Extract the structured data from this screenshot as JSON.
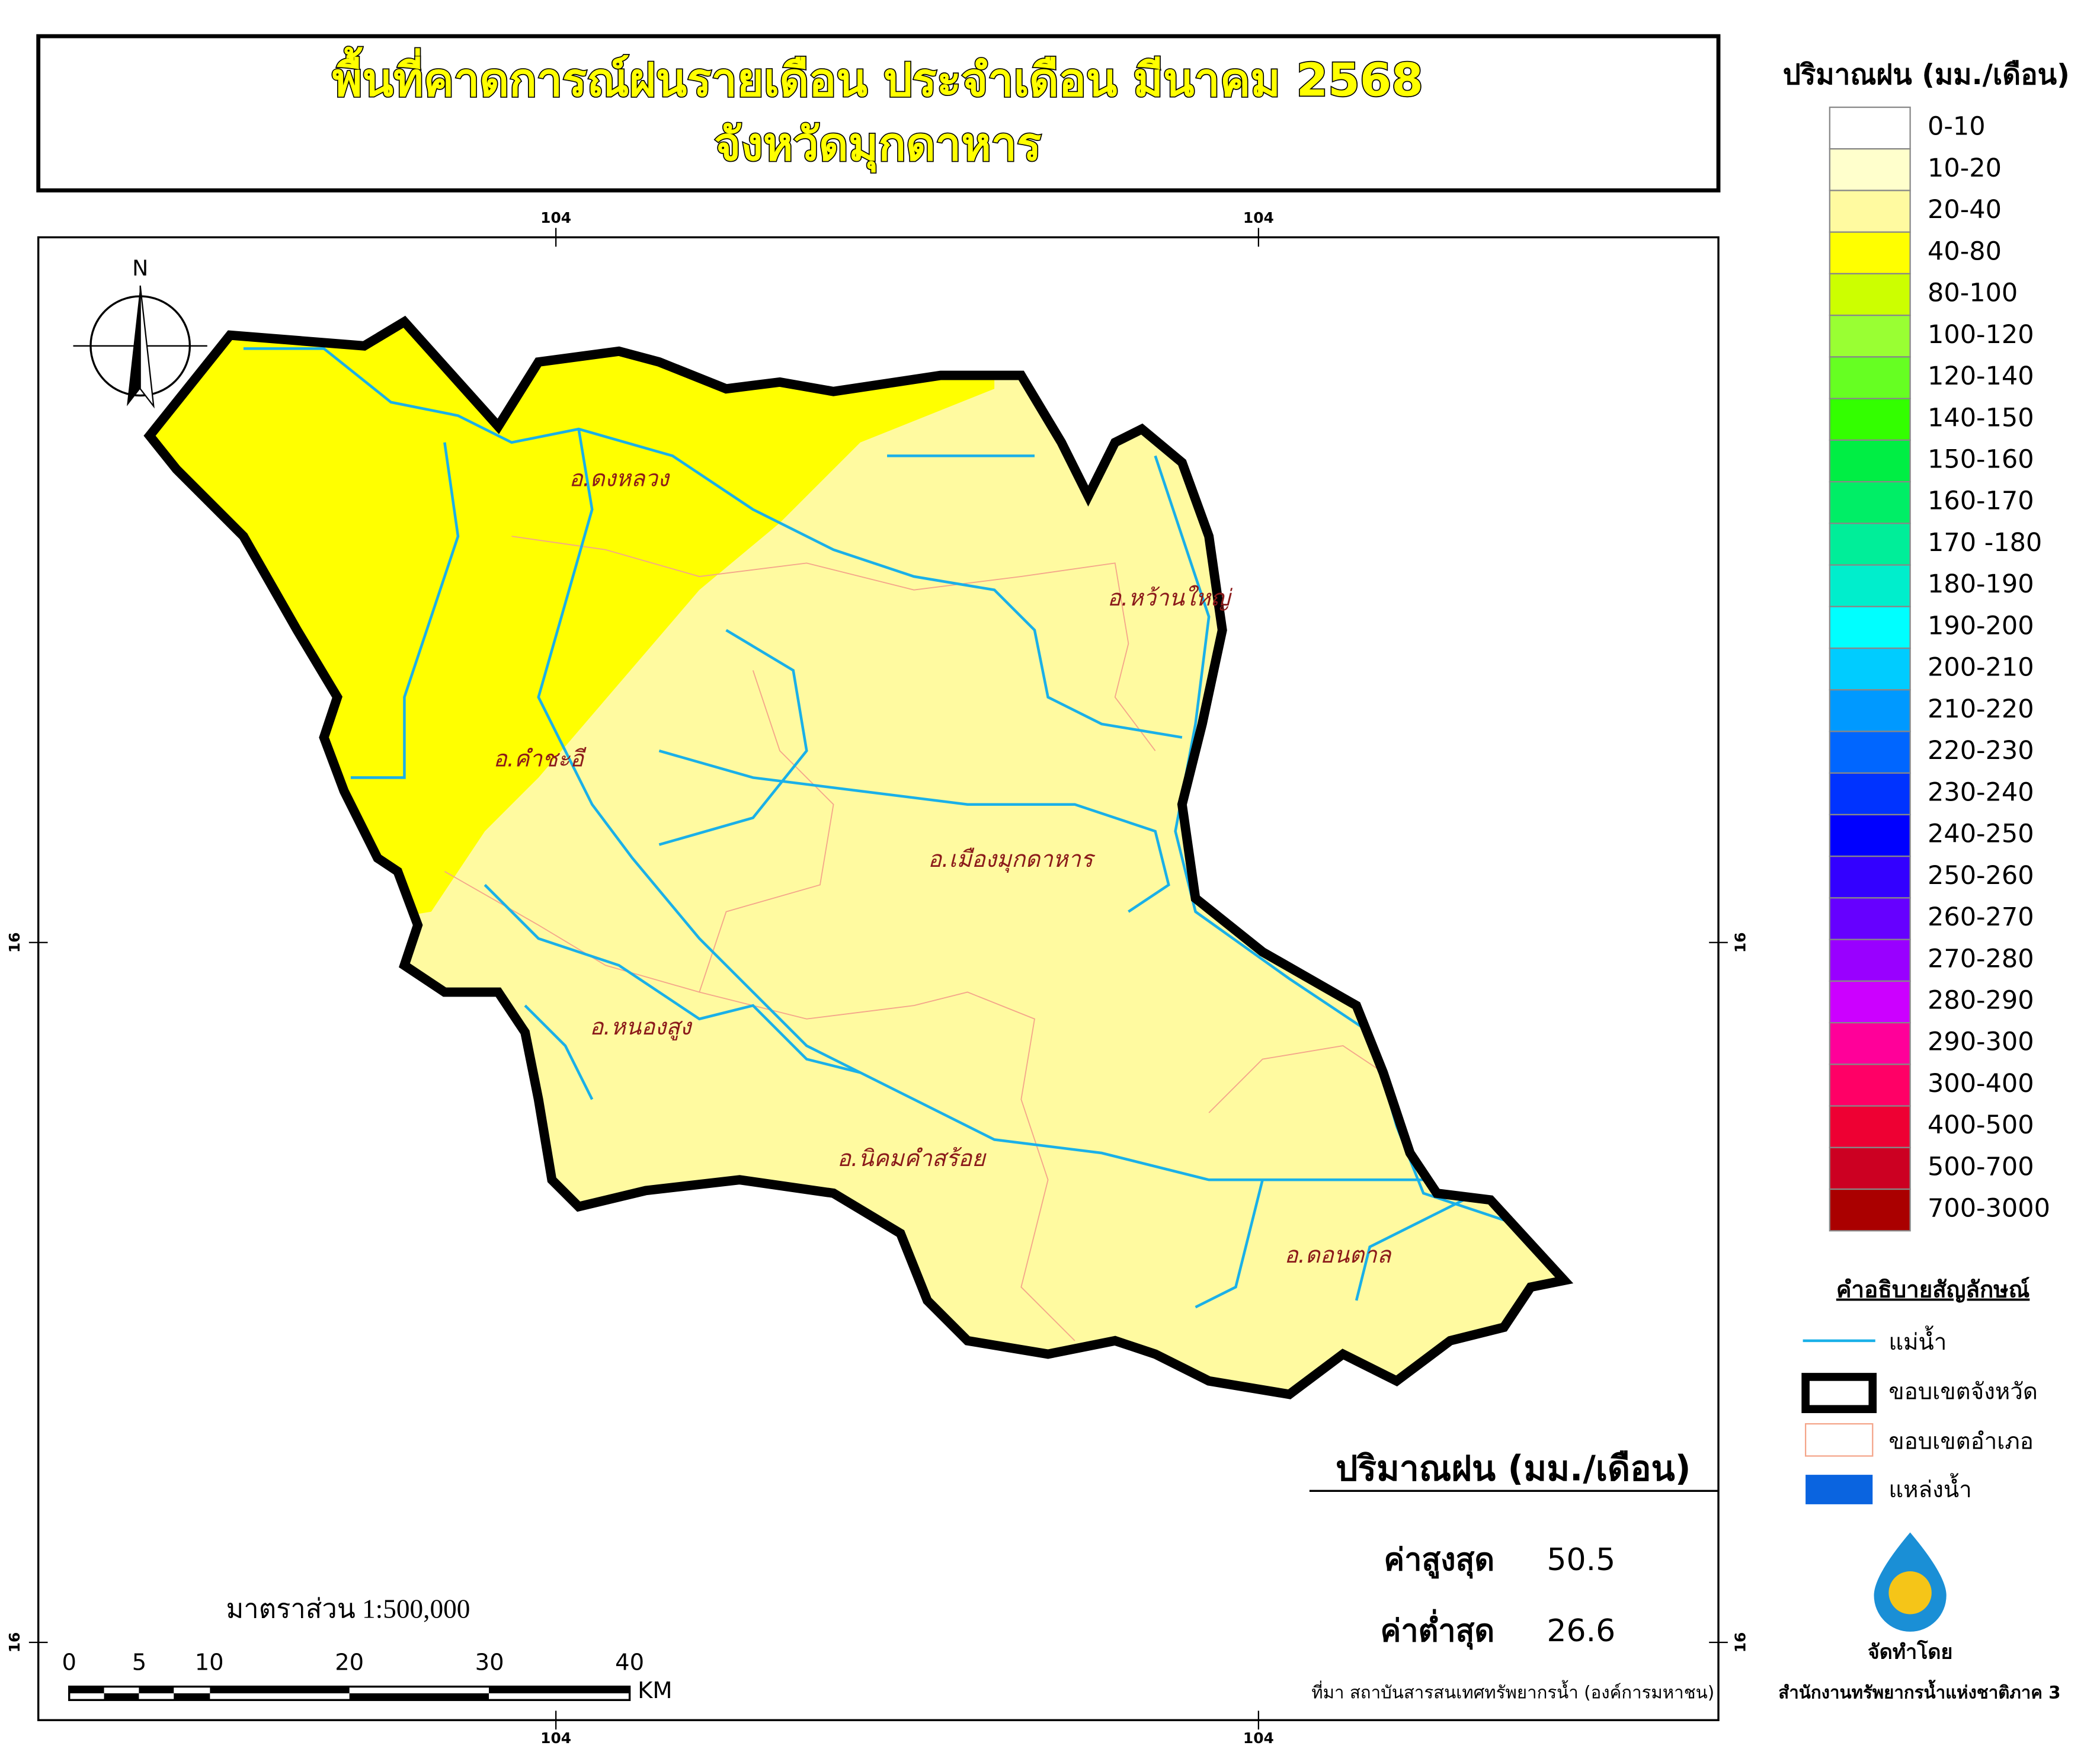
{
  "title": [
    "พื้นที่คาดการณ์ฝนรายเดือน ประจำเดือน มีนาคม 2568",
    "จังหวัดมุกดาหาร"
  ],
  "legend": {
    "title": "ปริมาณฝน (มม./เดือน)",
    "classes": [
      {
        "label": "0-10",
        "color": "#ffffff"
      },
      {
        "label": "10-20",
        "color": "#ffffcc"
      },
      {
        "label": "20-40",
        "color": "#fffaa0"
      },
      {
        "label": "40-80",
        "color": "#ffff00"
      },
      {
        "label": "80-100",
        "color": "#ccff00"
      },
      {
        "label": "100-120",
        "color": "#99ff33"
      },
      {
        "label": "120-140",
        "color": "#66ff22"
      },
      {
        "label": "140-150",
        "color": "#33ff00"
      },
      {
        "label": "150-160",
        "color": "#00ee44"
      },
      {
        "label": "160-170",
        "color": "#00ee66"
      },
      {
        "label": "170 -180",
        "color": "#00ee99"
      },
      {
        "label": "180-190",
        "color": "#00eecc"
      },
      {
        "label": "190-200",
        "color": "#00ffff"
      },
      {
        "label": "200-210",
        "color": "#00ccff"
      },
      {
        "label": "210-220",
        "color": "#0099ff"
      },
      {
        "label": "220-230",
        "color": "#0066ff"
      },
      {
        "label": "230-240",
        "color": "#0033ff"
      },
      {
        "label": "240-250",
        "color": "#0000ff"
      },
      {
        "label": "250-260",
        "color": "#3300ff"
      },
      {
        "label": "260-270",
        "color": "#6600ff"
      },
      {
        "label": "270-280",
        "color": "#9900ff"
      },
      {
        "label": "280-290",
        "color": "#cc00ff"
      },
      {
        "label": "290-300",
        "color": "#ff0099"
      },
      {
        "label": "300-400",
        "color": "#ff0066"
      },
      {
        "label": "400-500",
        "color": "#ee0033"
      },
      {
        "label": "500-700",
        "color": "#cc0022"
      },
      {
        "label": "700-3000",
        "color": "#aa0000"
      }
    ]
  },
  "symbols": {
    "title": "คำอธิบายสัญลักษณ์",
    "items": [
      {
        "label": "แม่น้ำ"
      },
      {
        "label": "ขอบเขตจังหวัด"
      },
      {
        "label": "ขอบเขตอำเภอ"
      },
      {
        "label": "แหล่งน้ำ"
      }
    ]
  },
  "grid_labels": {
    "top": [
      "104",
      "104"
    ],
    "bottom": [
      "104",
      "104"
    ],
    "left": [
      "16",
      "16"
    ],
    "right": [
      "16",
      "16"
    ]
  },
  "north": "N",
  "districts": [
    {
      "label": "อ.ดงหลวง"
    },
    {
      "label": "อ.หว้านใหญ่"
    },
    {
      "label": "อ.คำชะอี"
    },
    {
      "label": "อ.เมืองมุกดาหาร"
    },
    {
      "label": "อ.หนองสูง"
    },
    {
      "label": "อ.นิคมคำสร้อย"
    },
    {
      "label": "อ.ดอนตาล"
    }
  ],
  "stats": {
    "title": "ปริมาณฝน (มม./เดือน)",
    "rows": [
      {
        "label": "ค่าสูงสุด",
        "value": "50.5"
      },
      {
        "label": "ค่าต่ำสุด",
        "value": "26.6"
      }
    ]
  },
  "scale": {
    "text": "มาตราส่วน 1:500,000",
    "ticks": [
      0,
      5,
      10,
      20,
      30,
      40
    ],
    "unit": "KM"
  },
  "source": "ที่มา  สถาบันสารสนเทศทรัพยากรน้ำ (องค์การมหาชน)",
  "producer": {
    "label": "จัดทำโดย",
    "name": "สำนักงานทรัพยากรน้ำแห่งชาติภาค 3"
  }
}
